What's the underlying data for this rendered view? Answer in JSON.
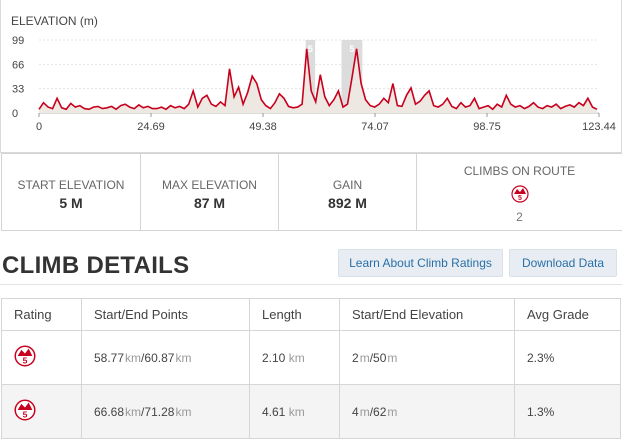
{
  "chart": {
    "title": "ELEVATION (m)",
    "y_ticks": [
      "99",
      "66",
      "33",
      "0"
    ],
    "x_ticks": [
      "0",
      "24.69",
      "49.38",
      "74.07",
      "98.75",
      "123.44"
    ],
    "climb_markers": [
      "5",
      "5"
    ],
    "line_color": "#c8001e",
    "fill_color": "#ede8e2",
    "marker_color": "#d6d6d6"
  },
  "chart_data": {
    "type": "area",
    "title": "ELEVATION (m)",
    "xlabel": "",
    "ylabel": "",
    "xlim": [
      0,
      123.44
    ],
    "ylim": [
      0,
      99
    ],
    "grid": true,
    "highlighted_ranges": [
      [
        58.77,
        60.87
      ],
      [
        66.68,
        71.28
      ]
    ],
    "x": [
      0,
      1,
      2,
      3,
      4,
      5,
      6,
      7,
      8,
      9,
      10,
      11,
      12,
      13,
      14,
      15,
      16,
      17,
      18,
      19,
      20,
      21,
      22,
      23,
      24,
      25,
      26,
      27,
      28,
      29,
      30,
      31,
      32,
      33,
      34,
      35,
      36,
      37,
      38,
      39,
      40,
      41,
      42,
      43,
      44,
      45,
      46,
      47,
      48,
      49,
      50,
      51,
      52,
      53,
      54,
      55,
      56,
      57,
      58,
      59,
      60,
      61,
      62,
      63,
      64,
      65,
      66,
      67,
      68,
      69,
      70,
      71,
      72,
      73,
      74,
      75,
      76,
      77,
      78,
      79,
      80,
      81,
      82,
      83,
      84,
      85,
      86,
      87,
      88,
      89,
      90,
      91,
      92,
      93,
      94,
      95,
      96,
      97,
      98,
      99,
      100,
      101,
      102,
      103,
      104,
      105,
      106,
      107,
      108,
      109,
      110,
      111,
      112,
      113,
      114,
      115,
      116,
      117,
      118,
      119,
      120,
      121,
      122,
      123
    ],
    "y": [
      5,
      14,
      8,
      6,
      20,
      7,
      5,
      13,
      8,
      10,
      6,
      5,
      8,
      9,
      6,
      7,
      9,
      5,
      10,
      12,
      8,
      6,
      11,
      7,
      9,
      6,
      6,
      8,
      5,
      10,
      7,
      9,
      6,
      12,
      30,
      8,
      20,
      24,
      12,
      9,
      15,
      10,
      60,
      22,
      35,
      12,
      28,
      50,
      40,
      18,
      10,
      6,
      14,
      26,
      20,
      9,
      7,
      8,
      12,
      87,
      30,
      15,
      52,
      22,
      10,
      18,
      30,
      8,
      12,
      48,
      87,
      40,
      18,
      10,
      8,
      12,
      20,
      14,
      40,
      10,
      9,
      24,
      34,
      12,
      16,
      24,
      30,
      10,
      8,
      12,
      20,
      9,
      6,
      14,
      8,
      10,
      20,
      6,
      8,
      10,
      5,
      12,
      8,
      24,
      12,
      8,
      10,
      6,
      9,
      14,
      8,
      6,
      10,
      8,
      12,
      6,
      9,
      11,
      8,
      14,
      10,
      20,
      8,
      5
    ]
  },
  "stats": {
    "start_elevation": {
      "label": "START ELEVATION",
      "value": "5 M"
    },
    "max_elevation": {
      "label": "MAX ELEVATION",
      "value": "87 M"
    },
    "gain": {
      "label": "GAIN",
      "value": "892 M"
    },
    "climbs": {
      "label": "CLIMBS ON ROUTE",
      "badge": "5",
      "count": "2"
    }
  },
  "climb_details": {
    "title": "CLIMB DETAILS",
    "learn_button": "Learn About Climb Ratings",
    "download_button": "Download Data",
    "columns": [
      "Rating",
      "Start/End Points",
      "Length",
      "Start/End Elevation",
      "Avg Grade"
    ],
    "rows": [
      {
        "rating": "5",
        "start": "58.77",
        "start_unit": "km",
        "end": "60.87",
        "end_unit": "km",
        "length": "2.10",
        "length_unit": "km",
        "elev_start": "2",
        "elev_start_unit": "m",
        "elev_end": "50",
        "elev_end_unit": "m",
        "grade": "2.3%"
      },
      {
        "rating": "5",
        "start": "66.68",
        "start_unit": "km",
        "end": "71.28",
        "end_unit": "km",
        "length": "4.61",
        "length_unit": "km",
        "elev_start": "4",
        "elev_start_unit": "m",
        "elev_end": "62",
        "elev_end_unit": "m",
        "grade": "1.3%"
      }
    ]
  }
}
